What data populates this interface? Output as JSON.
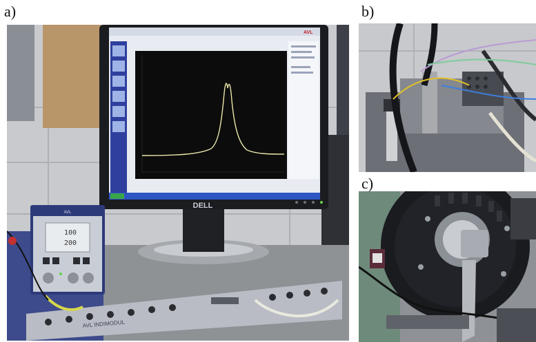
{
  "figure": {
    "panels": [
      {
        "id": "a",
        "label": "a)"
      },
      {
        "id": "b",
        "label": "b)"
      },
      {
        "id": "c",
        "label": "c)"
      }
    ]
  },
  "panel_a": {
    "monitor_brand": "DELL",
    "device_brand": "AVL",
    "device_readout_line1": "100",
    "device_readout_line2": "200",
    "indimodul_label": "AVL INDIMODUL",
    "screen_logo": "AVL"
  },
  "colors": {
    "screen_bg": "#0c0c0c",
    "trace": "#e9e6a8",
    "sidebar": "#2f3f9e",
    "amp_body": "#2d3a7a",
    "indimodul": "#b9bcc4"
  }
}
